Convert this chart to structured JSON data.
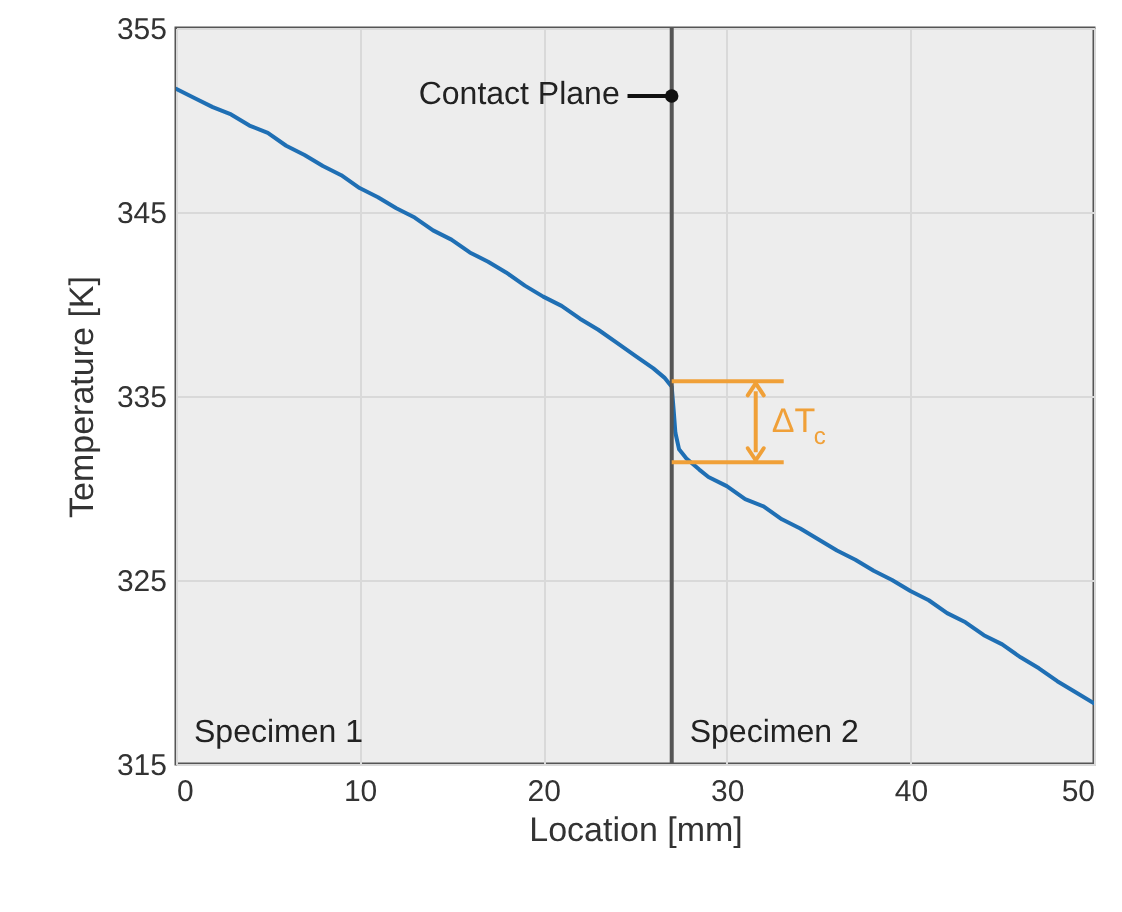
{
  "chart_data": {
    "type": "line",
    "xlabel": "Location [mm]",
    "ylabel": "Temperature [K]",
    "xlim": [
      0,
      50
    ],
    "ylim": [
      315,
      355
    ],
    "xticks": [
      0,
      10,
      20,
      30,
      40,
      50
    ],
    "yticks": [
      315,
      325,
      335,
      345,
      355
    ],
    "grid": true,
    "marker": "none",
    "line_style": "solid",
    "series": [
      {
        "color": "#1f6fb4",
        "x": [
          0,
          1,
          2,
          3,
          4,
          5,
          6,
          7,
          8,
          9,
          10,
          11,
          12,
          13,
          14,
          15,
          16,
          17,
          18,
          19,
          20,
          21,
          22,
          23,
          24,
          25,
          26,
          26.6,
          27,
          27.1,
          27.2,
          27.4,
          27.8,
          28.5,
          29,
          30,
          31,
          32,
          33,
          34,
          35,
          36,
          37,
          38,
          39,
          40,
          41,
          42,
          43,
          44,
          45,
          46,
          47,
          48,
          49,
          50
        ],
        "values": [
          351.7,
          351.2,
          350.7,
          350.3,
          349.7,
          349.3,
          348.6,
          348.1,
          347.5,
          347.0,
          346.3,
          345.8,
          345.2,
          344.7,
          344.0,
          343.5,
          342.8,
          342.3,
          341.7,
          341.0,
          340.4,
          339.9,
          339.2,
          338.6,
          337.9,
          337.2,
          336.5,
          336.0,
          335.5,
          334.3,
          333.0,
          332.1,
          331.6,
          331.0,
          330.6,
          330.1,
          329.4,
          329.0,
          328.3,
          327.8,
          327.2,
          326.6,
          326.1,
          325.5,
          325.0,
          324.4,
          323.9,
          323.2,
          322.7,
          322.0,
          321.5,
          320.8,
          320.2,
          319.5,
          318.9,
          318.3
        ]
      }
    ],
    "ref_lines": [
      {
        "axis": "x",
        "value": 27,
        "label": "Contact Plane",
        "color": "#555555"
      },
      {
        "axis": "y",
        "value": 335.8,
        "label": "ΔT$_{c}$",
        "color": "#f0a038"
      },
      {
        "axis": "y",
        "value": 331.4,
        "color": "#f0a038"
      }
    ],
    "annotations": [
      "Specimen 1",
      "Specimen 2"
    ]
  }
}
